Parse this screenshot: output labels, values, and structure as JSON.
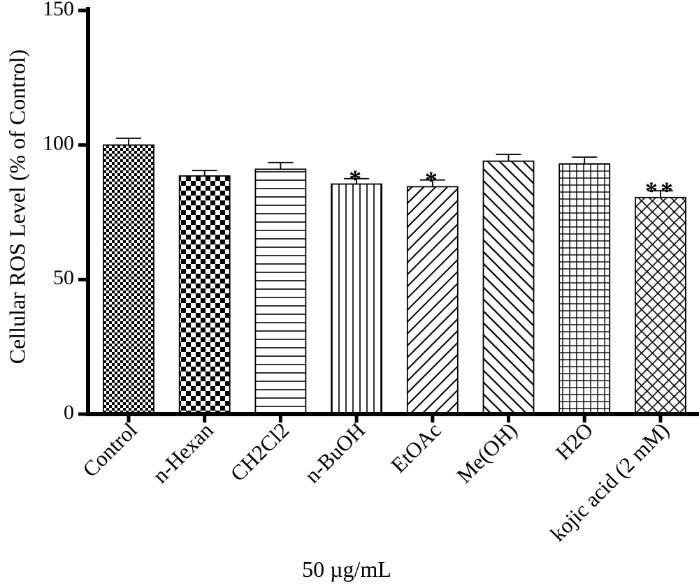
{
  "chart_data": {
    "type": "bar",
    "xlabel": "50 µg/mL",
    "ylabel": "Cellular ROS Level (% of Control)",
    "ylim": [
      0,
      150
    ],
    "yticks": [
      0,
      50,
      100,
      150
    ],
    "grid": false,
    "categories": [
      "Control",
      "n-Hexan",
      "CH2Cl2",
      "n-BuOH",
      "EtOAc",
      "Me(OH)",
      "H2O",
      "kojic acid (2 mM)"
    ],
    "values": [
      100,
      88.5,
      91,
      85.5,
      84.5,
      94,
      93,
      80.5
    ],
    "errors": [
      2.5,
      2,
      2.5,
      2,
      2.5,
      2.5,
      2.5,
      2.5
    ],
    "significance": [
      "",
      "",
      "",
      "*",
      "*",
      "",
      "",
      "**"
    ],
    "patterns": [
      "fine-checker",
      "checker",
      "horizontal-lines",
      "vertical-lines",
      "diagonal-up",
      "diagonal-down",
      "grid",
      "crosshatch-diagonal"
    ]
  }
}
